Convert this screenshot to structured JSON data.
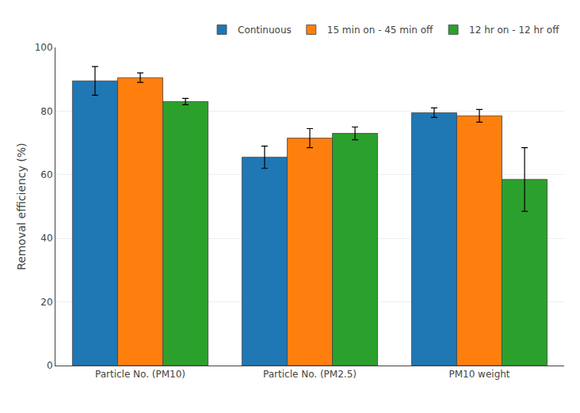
{
  "chart_data": {
    "type": "bar",
    "categories": [
      "Particle No. (PM10)",
      "Particle No. (PM2.5)",
      "PM10 weight"
    ],
    "series": [
      {
        "name": "Continuous",
        "values": [
          89.5,
          65.5,
          79.5
        ],
        "errors": [
          4.5,
          3.5,
          1.5
        ]
      },
      {
        "name": "15 min on - 45 min off",
        "values": [
          90.5,
          71.5,
          78.5
        ],
        "errors": [
          1.5,
          3.0,
          2.0
        ]
      },
      {
        "name": "12 hr on - 12 hr off",
        "values": [
          83.0,
          73.0,
          58.5
        ],
        "errors": [
          1.0,
          2.0,
          10.0
        ]
      }
    ],
    "ylabel": "Removal efficiency (%)",
    "ylim": [
      0,
      100
    ],
    "yticks": [
      0,
      20,
      40,
      60,
      80,
      100
    ],
    "grid": true,
    "legend": "upper right"
  }
}
